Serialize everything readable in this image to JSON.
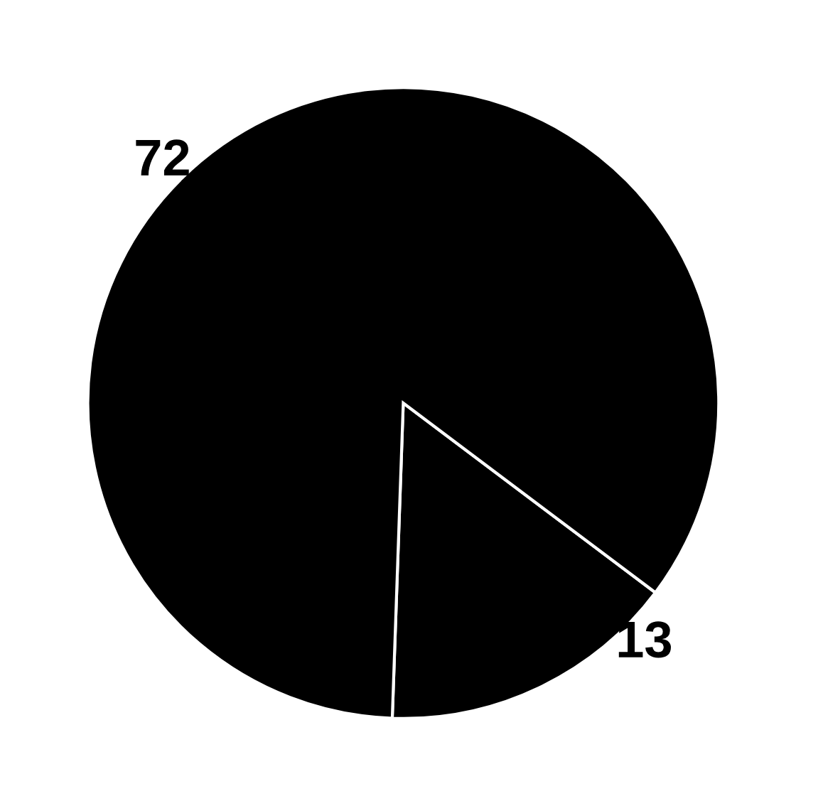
{
  "chart_data": {
    "type": "pie",
    "categories": [
      null,
      null
    ],
    "values": [
      13,
      72
    ],
    "colors": [
      "#000000",
      "#000000"
    ],
    "data_labels": true
  }
}
